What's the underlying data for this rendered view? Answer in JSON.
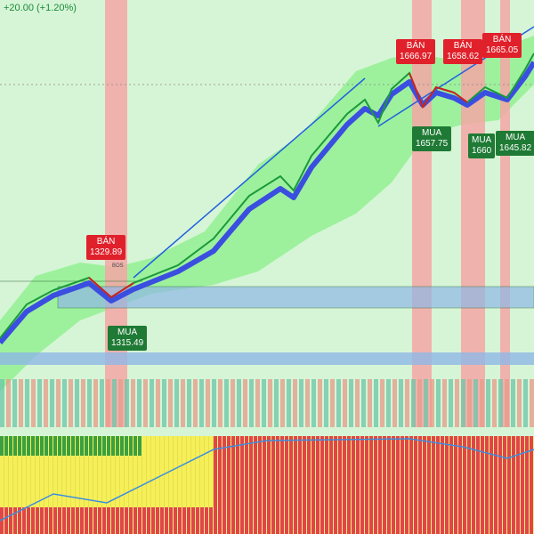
{
  "header": {
    "change": "+20.00 (+1.20%)"
  },
  "signals": [
    {
      "side": "BÁN",
      "price": "1329.89"
    },
    {
      "side": "MUA",
      "price": "1315.49"
    },
    {
      "side": "BÁN",
      "price": "1666.97"
    },
    {
      "side": "BÁN",
      "price": "1658.62"
    },
    {
      "side": "BÁN",
      "price": "1665.05"
    },
    {
      "side": "MUA",
      "price": "1657.75"
    },
    {
      "side": "MUA",
      "price": "1660"
    },
    {
      "side": "MUA",
      "price": "1645.82"
    }
  ],
  "marker": "BOS"
}
